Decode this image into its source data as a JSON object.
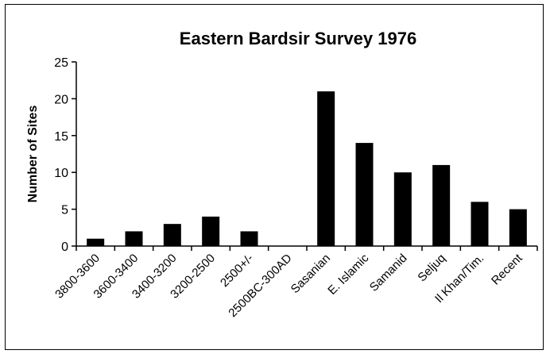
{
  "chart_data": {
    "type": "bar",
    "title": "Eastern Bardsir Survey 1976",
    "xlabel": "",
    "ylabel": "Number of Sites",
    "ylim": [
      0,
      25
    ],
    "yticks": [
      0,
      5,
      10,
      15,
      20,
      25
    ],
    "grid": false,
    "categories": [
      "3800-3600",
      "3600-3400",
      "3400-3200",
      "3200-2500",
      "2500+/-",
      "2500BC-300AD",
      "Sasanian",
      "E. Islamic",
      "Samanid",
      "Seljuq",
      "Il Khan/Tim.",
      "Recent"
    ],
    "values": [
      1,
      2,
      3,
      4,
      2,
      0,
      21,
      14,
      10,
      11,
      6,
      5
    ],
    "bar_color": "#000000"
  }
}
